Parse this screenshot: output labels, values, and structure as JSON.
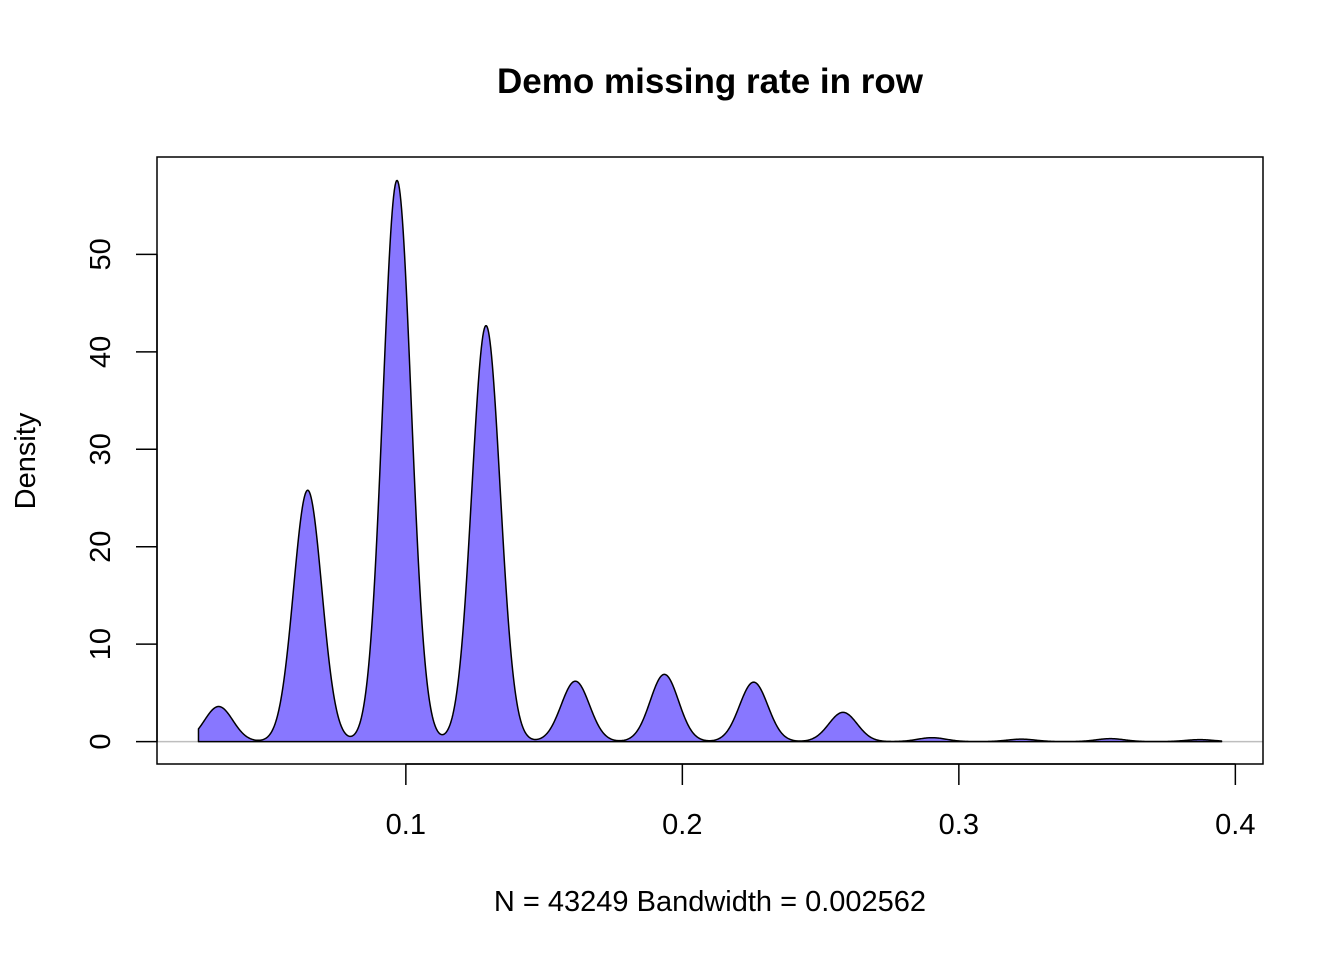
{
  "chart_data": {
    "type": "area",
    "title": "Demo missing rate in row",
    "xlabel": "N = 43249   Bandwidth = 0.002562",
    "ylabel": "Density",
    "xlim": [
      0.01,
      0.41
    ],
    "ylim": [
      -2.3,
      60.0
    ],
    "x_ticks": [
      0.1,
      0.2,
      0.3,
      0.4
    ],
    "x_tick_labels": [
      "0.1",
      "0.2",
      "0.3",
      "0.4"
    ],
    "y_ticks": [
      0,
      10,
      20,
      30,
      40,
      50
    ],
    "y_tick_labels": [
      "0",
      "10",
      "20",
      "30",
      "40",
      "50"
    ],
    "bandwidth": 0.002562,
    "n": 43249,
    "x_range": [
      0.025,
      0.395
    ],
    "grid": false,
    "legend": "none",
    "fill_color": "#8877ff",
    "line_color": "#000000",
    "baseline_color": "#bebebe",
    "peaks": [
      {
        "x": 0.0323,
        "y": 3.6
      },
      {
        "x": 0.0645,
        "y": 25.8
      },
      {
        "x": 0.0968,
        "y": 57.6
      },
      {
        "x": 0.129,
        "y": 42.7
      },
      {
        "x": 0.1613,
        "y": 6.2
      },
      {
        "x": 0.1935,
        "y": 6.9
      },
      {
        "x": 0.2258,
        "y": 6.1
      },
      {
        "x": 0.2581,
        "y": 3.0
      },
      {
        "x": 0.2903,
        "y": 0.4
      },
      {
        "x": 0.3226,
        "y": 0.25
      },
      {
        "x": 0.3548,
        "y": 0.3
      },
      {
        "x": 0.3871,
        "y": 0.2
      }
    ]
  }
}
